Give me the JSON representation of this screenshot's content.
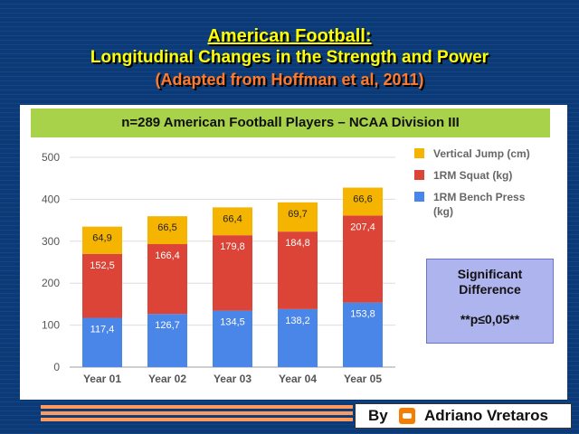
{
  "header": {
    "title": "American Football:",
    "subtitle": "Longitudinal Changes in the Strength and Power",
    "source": "(Adapted from Hoffman et al, 2011)"
  },
  "banner": "n=289 American Football Players – NCAA Division III",
  "significance": {
    "line1": "Significant",
    "line2": "Difference",
    "line3": "**p≤0,05**"
  },
  "credit": {
    "by": "By",
    "logo_icon": "blogger-icon",
    "name": "Adriano Vretaros"
  },
  "chart_data": {
    "type": "bar",
    "stacked": true,
    "categories": [
      "Year 01",
      "Year 02",
      "Year 03",
      "Year 04",
      "Year 05"
    ],
    "ylim": [
      0,
      500
    ],
    "yticks": [
      0,
      100,
      200,
      300,
      400,
      500
    ],
    "grid": true,
    "legend_position": "right",
    "series": [
      {
        "name": "1RM Bench Press",
        "color": "#4a86e8",
        "values": [
          117.4,
          126.7,
          134.5,
          138.2,
          153.8
        ],
        "labels": [
          "117,4",
          "126,7",
          "134,5",
          "138,2",
          "153,8"
        ]
      },
      {
        "name": "1RM Squat (kg)",
        "color": "#db4437",
        "values": [
          152.5,
          166.4,
          179.8,
          184.8,
          207.4
        ],
        "labels": [
          "152,5",
          "166,4",
          "179,8",
          "184,8",
          "207,4"
        ]
      },
      {
        "name": "Vertical Jump (cm)",
        "color": "#f4b400",
        "values": [
          64.9,
          66.5,
          66.4,
          69.7,
          66.6
        ],
        "labels": [
          "64,9",
          "66,5",
          "66,4",
          "69,7",
          "66,6"
        ]
      }
    ],
    "legend_order": [
      {
        "name": "Vertical Jump (cm)",
        "color": "#f4b400"
      },
      {
        "name": "1RM Squat (kg)",
        "color": "#db4437"
      },
      {
        "name": "1RM Bench Press (kg)",
        "color": "#4a86e8"
      }
    ]
  }
}
